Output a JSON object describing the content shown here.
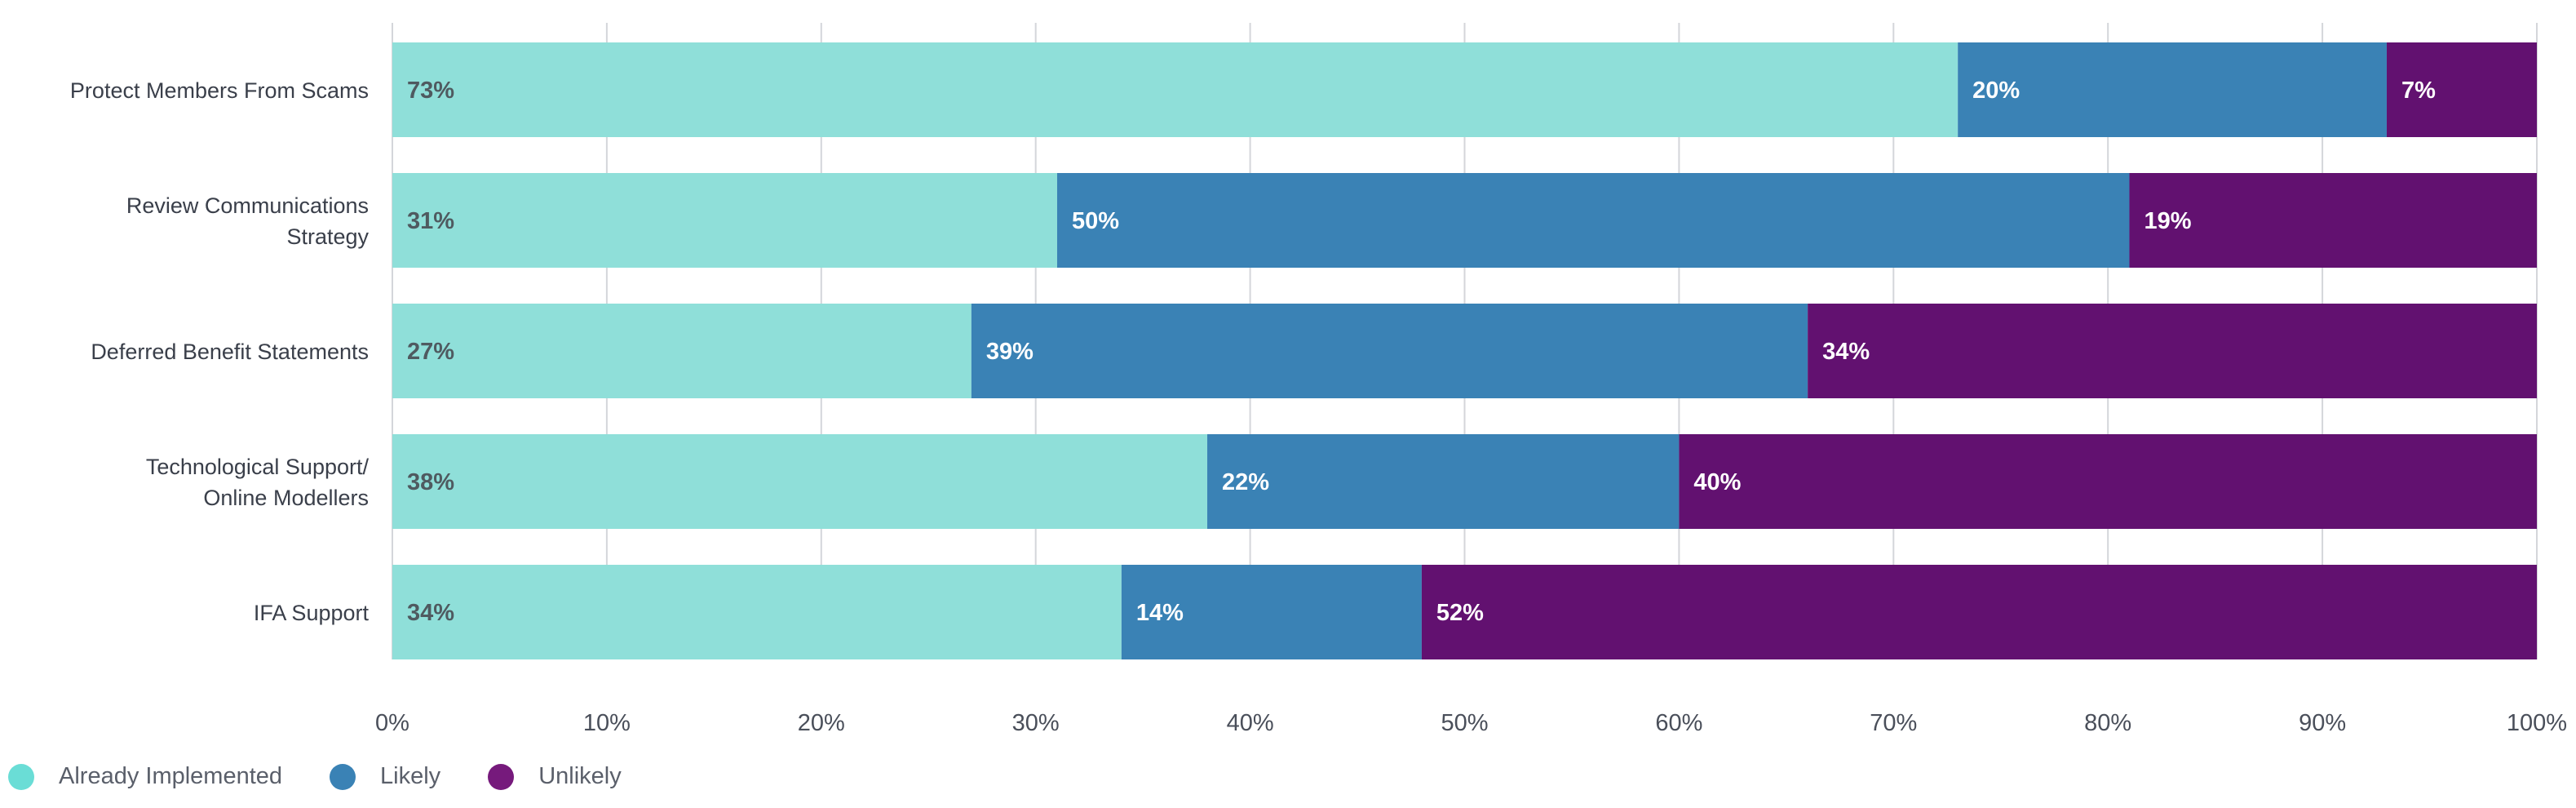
{
  "chart_data": {
    "type": "bar",
    "orientation": "horizontal",
    "stacked": true,
    "categories": [
      [
        "Protect Members From Scams"
      ],
      [
        "Review Communications",
        "Strategy"
      ],
      [
        "Deferred Benefit Statements"
      ],
      [
        "Technological Support/",
        "Online Modellers"
      ],
      [
        "IFA Support"
      ]
    ],
    "series": [
      {
        "name": "Already Implemented",
        "color": "#8FDFD9",
        "legend_color": "#6ADDD6",
        "label_color": "#4f5a60",
        "values": [
          73,
          31,
          27,
          38,
          34
        ]
      },
      {
        "name": "Likely",
        "color": "#3A82B5",
        "legend_color": "#3A82B5",
        "label_color": "#ffffff",
        "values": [
          20,
          50,
          39,
          22,
          14
        ]
      },
      {
        "name": "Unlikely",
        "color": "#621170",
        "legend_color": "#761A7C",
        "label_color": "#ffffff",
        "values": [
          7,
          19,
          34,
          40,
          52
        ]
      }
    ],
    "data_labels": [
      [
        "73%",
        "20%",
        "7%"
      ],
      [
        "31%",
        "50%",
        "19%"
      ],
      [
        "27%",
        "39%",
        "34%"
      ],
      [
        "38%",
        "22%",
        "40%"
      ],
      [
        "34%",
        "14%",
        "52%"
      ]
    ],
    "xticks": [
      "0%",
      "10%",
      "20%",
      "30%",
      "40%",
      "50%",
      "60%",
      "70%",
      "80%",
      "90%",
      "100%"
    ],
    "xlim": [
      0,
      100
    ],
    "grid": true,
    "legend_position": "bottom-left",
    "title": "",
    "xlabel": "",
    "ylabel": ""
  }
}
